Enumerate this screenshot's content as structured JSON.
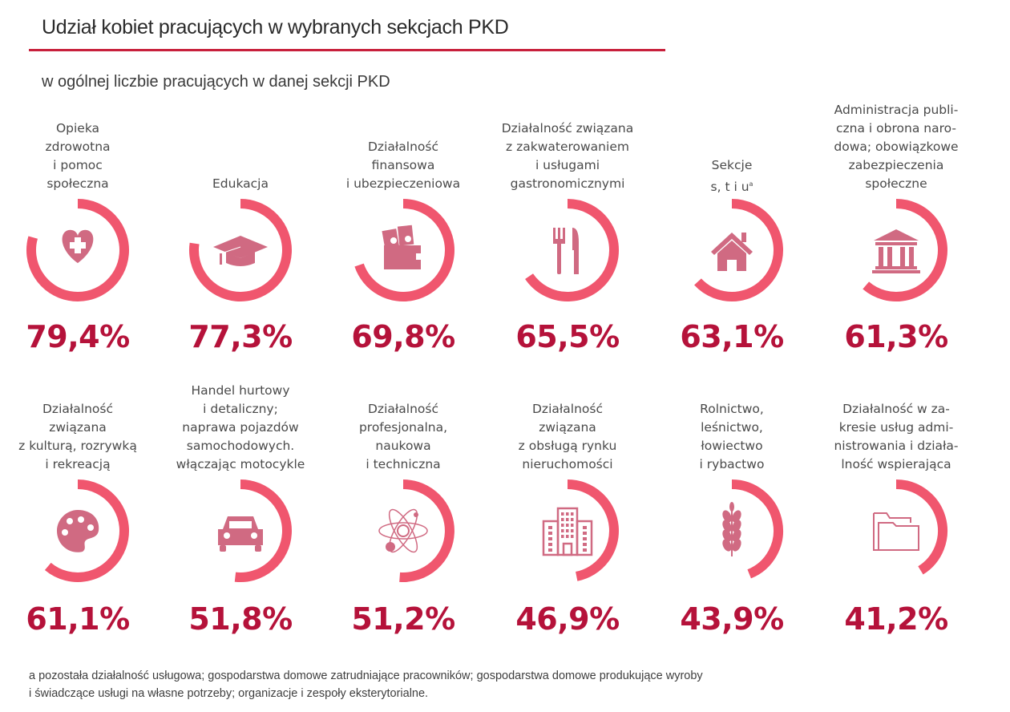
{
  "header": {
    "title": "Udział kobiet pracujących w wybranych sekcjach PKD",
    "subtitle": "w ogólnej liczbie pracujących w danej sekcji PKD"
  },
  "colors": {
    "ring": "#f0566e",
    "icon": "#d06a82",
    "value": "#b5123a",
    "rule": "#c8203c"
  },
  "chart_data": {
    "type": "pie",
    "subtype": "radial-progress-rings",
    "title": "Udział kobiet pracujących w wybranych sekcjach PKD",
    "subtitle": "w ogólnej liczbie pracujących w danej sekcji PKD",
    "unit": "%",
    "items": [
      {
        "label": "Opieka\nzdrowotna\ni pomoc\nspołeczna",
        "value": 79.4,
        "display": "79,4%",
        "icon": "heart-medical-icon"
      },
      {
        "label": "Edukacja",
        "value": 77.3,
        "display": "77,3%",
        "icon": "graduation-cap-icon"
      },
      {
        "label": "Działalność\nfinansowa\ni ubezpieczeniowa",
        "value": 69.8,
        "display": "69,8%",
        "icon": "wallet-money-icon"
      },
      {
        "label": "Działalność związana\nz zakwaterowaniem\ni usługami\ngastronomicznymi",
        "value": 65.5,
        "display": "65,5%",
        "icon": "fork-knife-icon"
      },
      {
        "label": "Sekcje\ns, t i u",
        "label_sup": "a",
        "value": 63.1,
        "display": "63,1%",
        "icon": "house-icon"
      },
      {
        "label": "Administracja publi-\nczna i obrona naro-\ndowa; obowiązkowe\nzabezpieczenia\nspołeczne",
        "value": 61.3,
        "display": "61,3%",
        "icon": "government-building-icon"
      },
      {
        "label": "Działalność\nzwiązana\nz kulturą, rozrywką\ni rekreacją",
        "value": 61.1,
        "display": "61,1%",
        "icon": "palette-icon"
      },
      {
        "label": "Handel hurtowy\ni detaliczny;\nnaprawa pojazdów\nsamochodowych.\nwłączając motocykle",
        "value": 51.8,
        "display": "51,8%",
        "icon": "car-icon"
      },
      {
        "label": "Działalność\nprofesjonalna,\nnaukowa\ni techniczna",
        "value": 51.2,
        "display": "51,2%",
        "icon": "atom-icon"
      },
      {
        "label": "Działalność\nzwiązana\nz obsługą rynku\nnieruchomości",
        "value": 46.9,
        "display": "46,9%",
        "icon": "office-building-icon"
      },
      {
        "label": "Rolnictwo,\nleśnictwo,\nłowiectwo\ni rybactwo",
        "value": 43.9,
        "display": "43,9%",
        "icon": "wheat-icon"
      },
      {
        "label": "Działalność w za-\nkresie usług admi-\nnistrowania i działa-\nlność wspierająca",
        "value": 41.2,
        "display": "41,2%",
        "icon": "folder-icon"
      }
    ]
  },
  "footnote": {
    "line1": "a pozostała działalność usługowa; gospodarstwa domowe zatrudniające pracowników; gospodarstwa domowe produkujące wyroby",
    "line2": "i świadczące usługi na własne potrzeby; organizacje i zespoły eksterytorialne."
  }
}
